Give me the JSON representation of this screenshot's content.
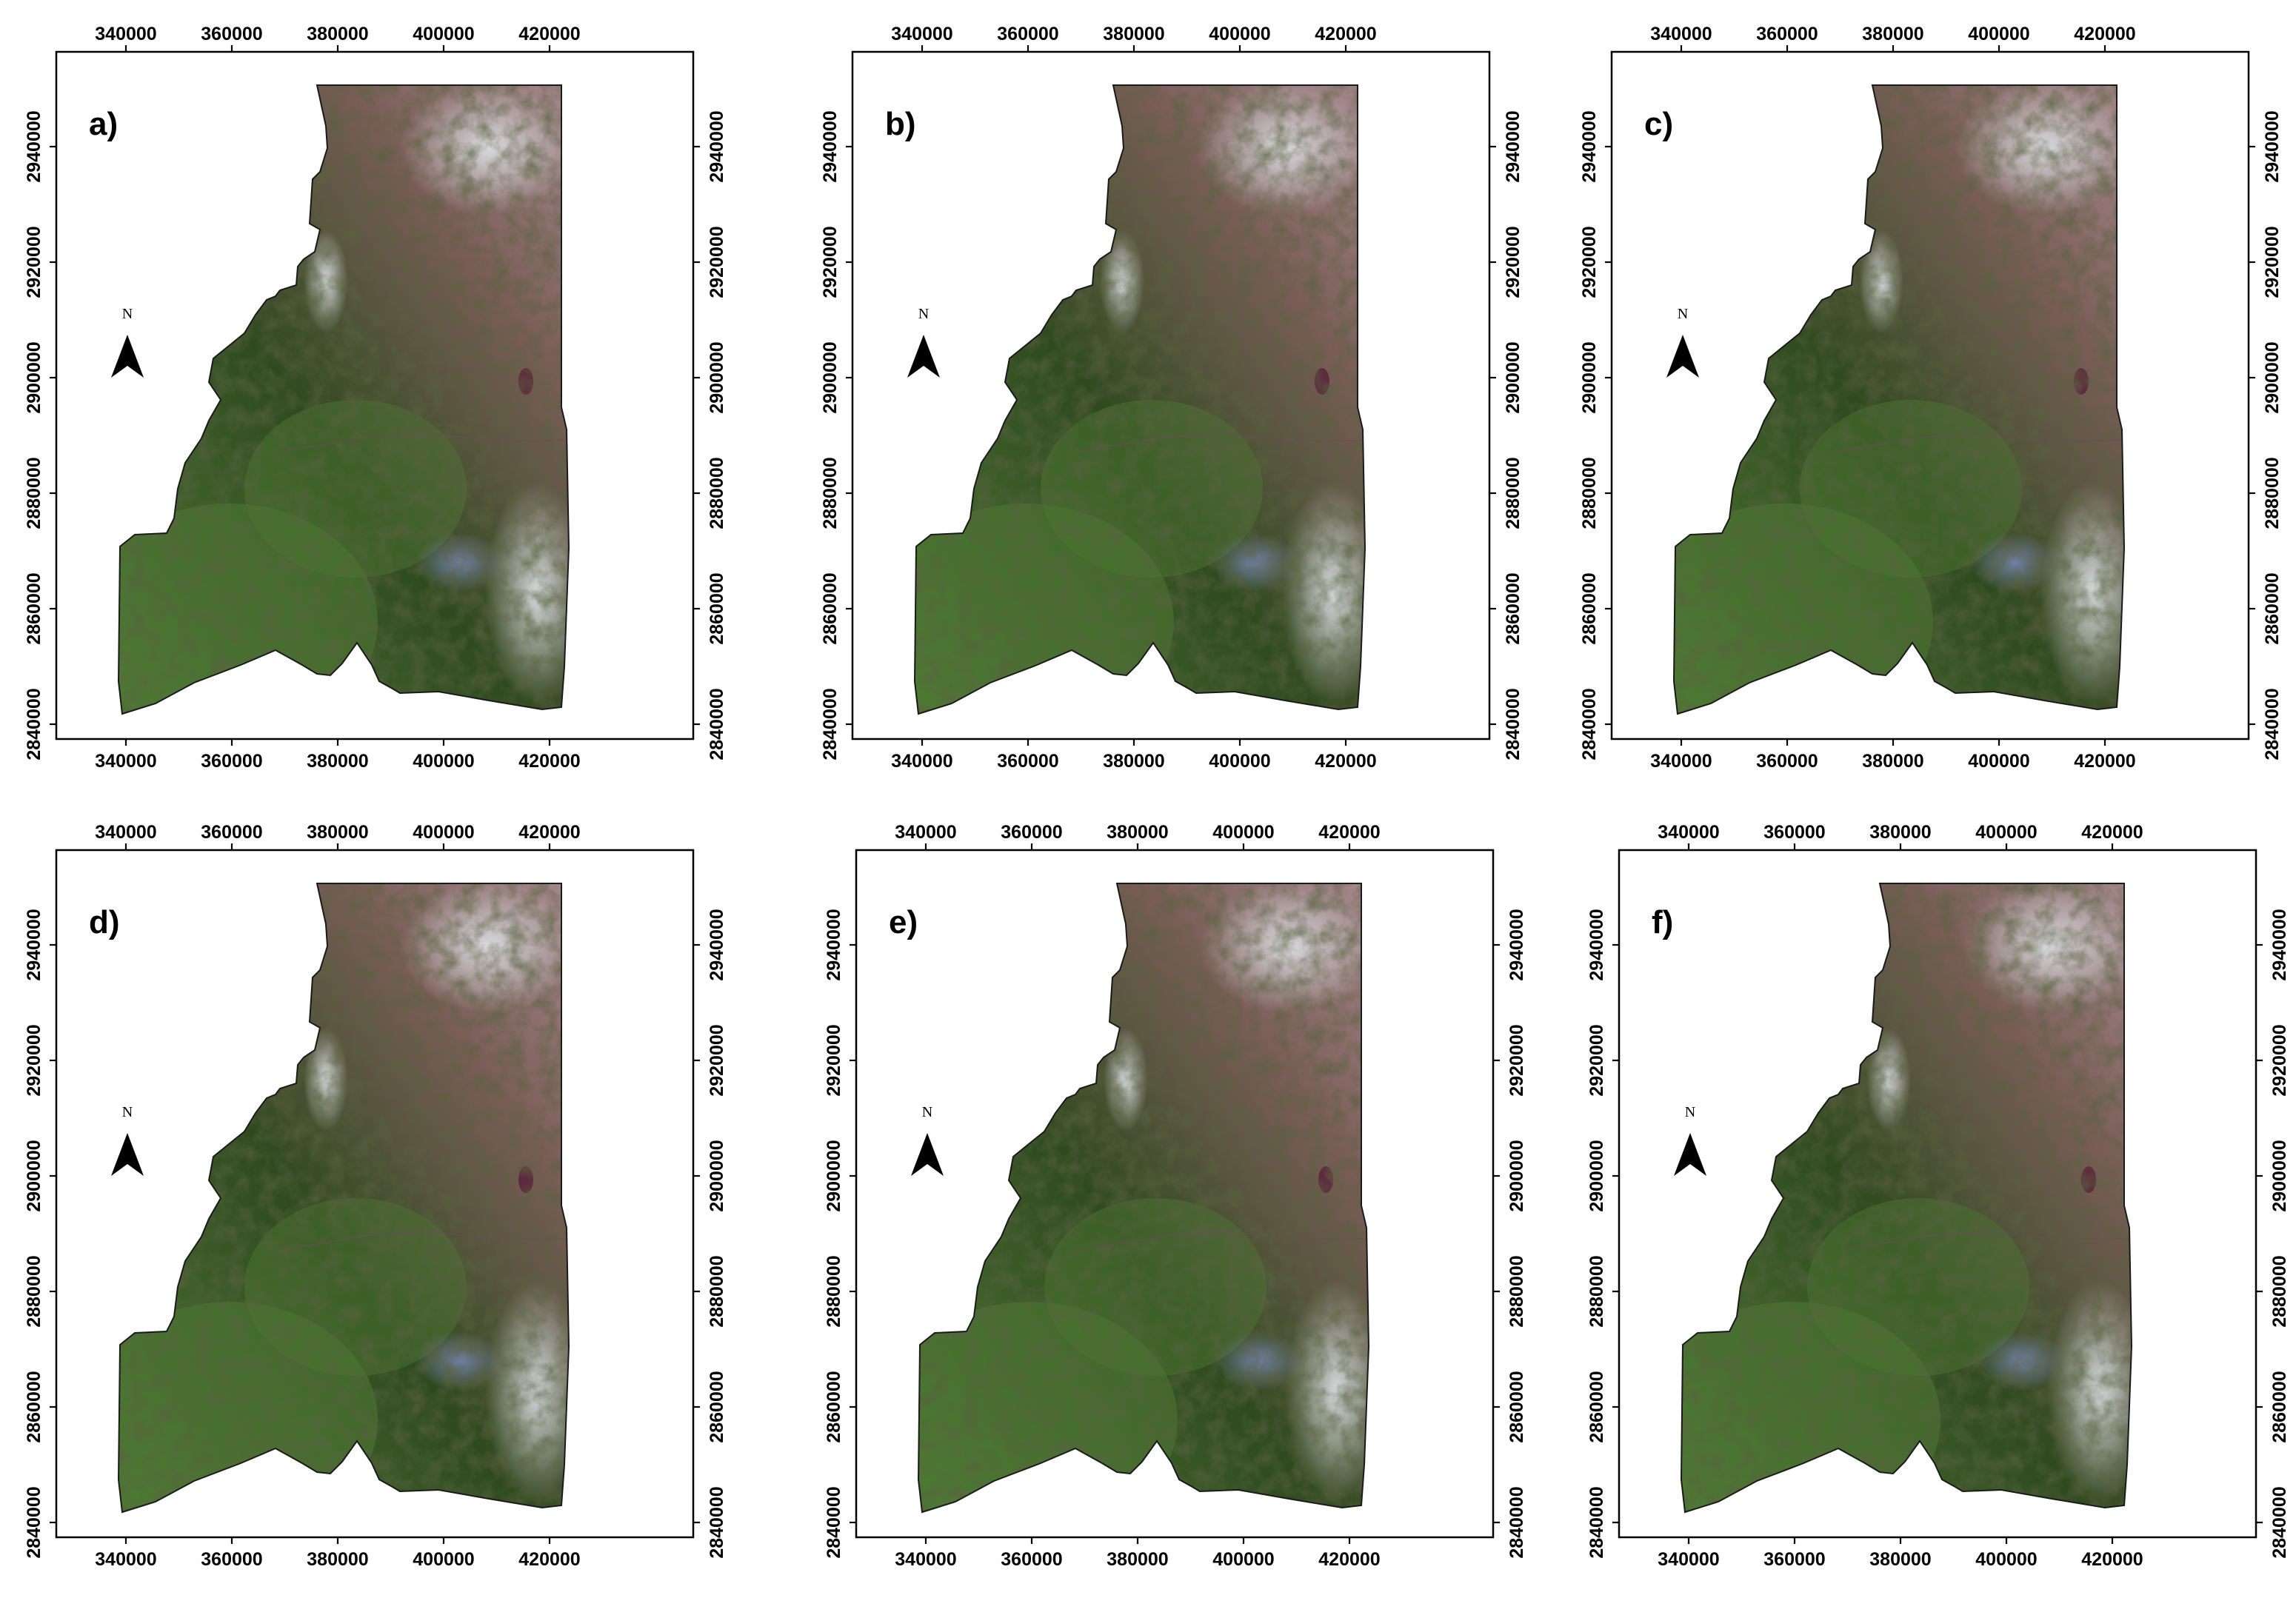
{
  "x_tick_labels": [
    "340000",
    "360000",
    "380000",
    "400000",
    "420000"
  ],
  "y_tick_labels": [
    "2840000",
    "2860000",
    "2880000",
    "2900000",
    "2920000",
    "2940000"
  ],
  "north_arrow_label": "N",
  "panels": [
    {
      "id": "a",
      "label": "a)"
    },
    {
      "id": "b",
      "label": "b)"
    },
    {
      "id": "c",
      "label": "c)"
    },
    {
      "id": "d",
      "label": "d)"
    },
    {
      "id": "e",
      "label": "e)"
    },
    {
      "id": "f",
      "label": "f)"
    }
  ],
  "imagery_colors": {
    "vegetation_dark": "#2f4a1f",
    "vegetation_green": "#4e7a34",
    "bare_brown": "#7b5d58",
    "rock_pink": "#a88b90",
    "haze_white": "#dcdfe4",
    "water_blue": "#7b88b8"
  }
}
